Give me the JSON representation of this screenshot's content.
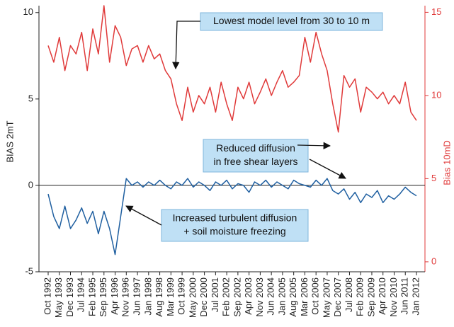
{
  "chart_data": {
    "type": "line",
    "y_label": "BIAS 2mT",
    "y2_label": "Bias 10mD",
    "categories": [
      "Oct 1992",
      null,
      "May 1993",
      null,
      "Dec 1993",
      null,
      "Jul 1994",
      null,
      "Feb 1995",
      null,
      "Sep 1995",
      null,
      "Apr 1996",
      null,
      "Nov 1996",
      null,
      "Jun 1997",
      null,
      "Jan 1998",
      null,
      "Aug 1998",
      null,
      "Mar 1999",
      null,
      "Oct 1999",
      null,
      "May 2000",
      null,
      "Dec 2000",
      null,
      "Jul 2001",
      null,
      "Feb 2002",
      null,
      "Sep 2002",
      null,
      "Apr 2003",
      null,
      "Nov 2003",
      null,
      "Jun 2004",
      null,
      "Jan 2005",
      null,
      "Aug 2005",
      null,
      "Mar 2006",
      null,
      "Oct 2006",
      null,
      "May 2007",
      null,
      "Dec 2007",
      null,
      "Jul 2008",
      null,
      "Feb 2009",
      null,
      "Sep 2009",
      null,
      "Apr 2010",
      null,
      "Nov 2010",
      null,
      "Jun 2011",
      null,
      "Jan 2012"
    ],
    "series": [
      {
        "name": "BIAS 2mT",
        "color": "#1f5fa0",
        "axis": "y",
        "values": [
          -0.5,
          -1.8,
          -2.5,
          -1.2,
          -2.5,
          -2.0,
          -1.3,
          -2.2,
          -1.5,
          -2.8,
          -1.5,
          -2.5,
          -4.0,
          -1.8,
          0.4,
          0.0,
          0.2,
          -0.1,
          0.2,
          0.0,
          0.3,
          0.0,
          -0.2,
          0.2,
          0.0,
          0.4,
          -0.1,
          0.2,
          0.0,
          -0.3,
          0.2,
          0.0,
          0.3,
          -0.2,
          0.1,
          0.0,
          -0.4,
          0.2,
          0.0,
          0.3,
          -0.1,
          0.2,
          0.0,
          -0.2,
          0.3,
          0.1,
          0.0,
          -0.1,
          0.3,
          0.0,
          0.4,
          -0.3,
          -0.5,
          -0.2,
          -0.8,
          -0.4,
          -1.0,
          -0.5,
          -0.7,
          -0.3,
          -1.0,
          -0.6,
          -0.8,
          -0.5,
          -0.1,
          -0.4,
          -0.6
        ]
      },
      {
        "name": "Bias 10mD",
        "color": "#e03a3a",
        "axis": "y2",
        "values": [
          13.0,
          12.0,
          13.5,
          11.5,
          13.0,
          12.5,
          13.8,
          11.5,
          14.0,
          12.5,
          15.4,
          12.0,
          14.2,
          13.5,
          11.8,
          12.8,
          13.0,
          12.0,
          13.0,
          12.2,
          12.5,
          11.5,
          11.0,
          9.5,
          8.5,
          10.5,
          9.0,
          10.0,
          9.5,
          10.5,
          9.0,
          10.8,
          9.5,
          8.5,
          10.5,
          9.8,
          10.8,
          9.5,
          10.2,
          11.0,
          10.0,
          10.8,
          11.5,
          10.5,
          10.8,
          11.2,
          13.5,
          12.0,
          13.8,
          12.5,
          11.5,
          9.5,
          7.8,
          11.2,
          10.5,
          11.0,
          9.0,
          10.5,
          10.2,
          9.8,
          10.2,
          9.5,
          10.0,
          9.5,
          10.8,
          9.0,
          8.5
        ]
      }
    ],
    "ylim": [
      -5,
      10.4
    ],
    "yticks": [
      -5,
      0,
      5,
      10
    ],
    "y2lim": [
      -0.6,
      15.4
    ],
    "y2ticks": [
      0,
      5,
      10,
      15
    ],
    "reference_line": 0,
    "annotations": [
      {
        "lines": [
          "Lowest model level from 30 to 10 m"
        ]
      },
      {
        "lines": [
          "Reduced diffusion",
          "in free shear layers"
        ]
      },
      {
        "lines": [
          "Increased turbulent diffusion",
          "+ soil moisture freezing"
        ]
      }
    ]
  }
}
